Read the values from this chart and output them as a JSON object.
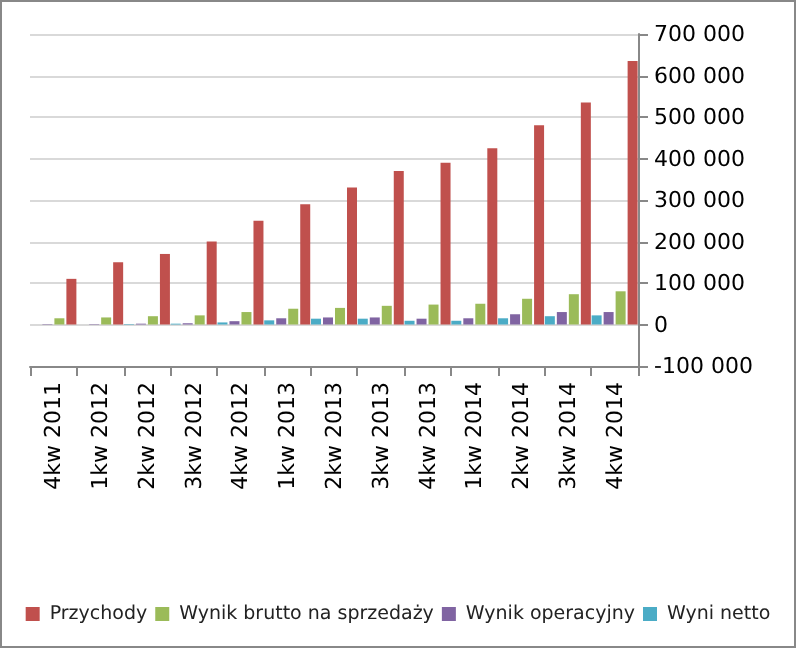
{
  "chart_data": {
    "type": "bar",
    "categories": [
      "4kw 2011",
      "1kw 2012",
      "2kw 2012",
      "3kw 2012",
      "4kw 2012",
      "1kw 2013",
      "2kw 2013",
      "3kw 2013",
      "4kw 2013",
      "1kw 2014",
      "2kw 2014",
      "3kw 2014",
      "4kw 2014"
    ],
    "series": [
      {
        "name": "Przychody",
        "color": "#c0504d",
        "values": [
          110000,
          150000,
          170000,
          200000,
          250000,
          290000,
          330000,
          370000,
          390000,
          425000,
          480000,
          535000,
          635000
        ]
      },
      {
        "name": "Wynik brutto na sprzedaży",
        "color": "#9bbb59",
        "values": [
          15000,
          17000,
          20000,
          22000,
          30000,
          38000,
          40000,
          45000,
          48000,
          50000,
          62000,
          73000,
          80000
        ]
      },
      {
        "name": "Wynik operacyjny",
        "color": "#8064a2",
        "values": [
          1000,
          1000,
          2000,
          3000,
          8000,
          15000,
          17000,
          17000,
          14000,
          15000,
          25000,
          30000,
          30000
        ]
      },
      {
        "name": "Wyni netto",
        "color": "#4bacc6",
        "values": [
          null,
          null,
          1000,
          2000,
          5000,
          10000,
          14000,
          14000,
          9000,
          9000,
          15000,
          20000,
          22000
        ]
      }
    ],
    "ylim": [
      -100000,
      700000
    ],
    "yticks": [
      {
        "value": -100000,
        "label": "-100 000"
      },
      {
        "value": 0,
        "label": "0"
      },
      {
        "value": 100000,
        "label": "100 000"
      },
      {
        "value": 200000,
        "label": "200 000"
      },
      {
        "value": 300000,
        "label": "300 000"
      },
      {
        "value": 400000,
        "label": "400 000"
      },
      {
        "value": 500000,
        "label": "500 000"
      },
      {
        "value": 600000,
        "label": "600 000"
      },
      {
        "value": 700000,
        "label": "700 000"
      }
    ],
    "grid": "y",
    "legend": "bottom"
  }
}
